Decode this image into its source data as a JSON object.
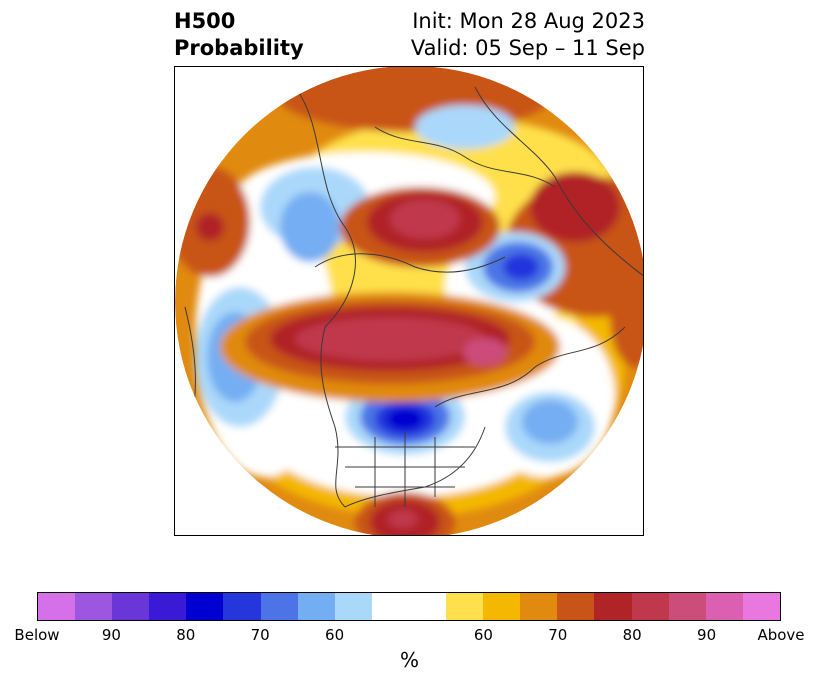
{
  "title": {
    "left_line1": "H500",
    "left_line2": "Probability",
    "right_line1": "Init: Mon 28 Aug 2023",
    "right_line2": "Valid: 05 Sep – 11 Sep"
  },
  "colorbar": {
    "colors": [
      "#d670e8",
      "#9d56e0",
      "#6a36d8",
      "#3a1ad6",
      "#0000d0",
      "#2436dc",
      "#4c74e6",
      "#74aef2",
      "#aad8fa",
      "#ffffff",
      "#ffffff",
      "#ffe04c",
      "#f4b800",
      "#e08a10",
      "#c85418",
      "#b02428",
      "#c0384c",
      "#cc4c7a",
      "#dc60b2",
      "#e878e0"
    ],
    "tick_labels": [
      "Below",
      "90",
      "80",
      "70",
      "60",
      "60",
      "70",
      "80",
      "90",
      "Above"
    ],
    "units": "%"
  },
  "map": {
    "projection": "north-polar-stereographic",
    "field": "500 hPa height probability"
  }
}
